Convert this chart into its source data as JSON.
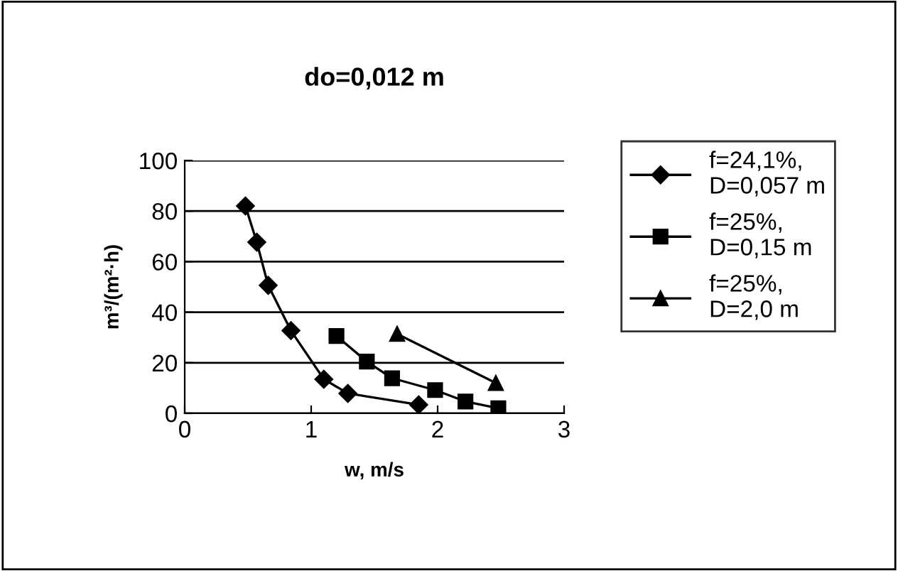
{
  "chart_data": {
    "type": "line",
    "title": "do=0,012 m",
    "xlabel": "w, m/s",
    "ylabel": "m³/(m²·h)",
    "xlim": [
      0,
      3
    ],
    "xticks": [
      0,
      1,
      2,
      3
    ],
    "ylim": [
      0,
      100
    ],
    "yticks": [
      0,
      20,
      40,
      60,
      80,
      100
    ],
    "grid": "y",
    "legend": "right",
    "line_style": "solid",
    "series": [
      {
        "name": "f=24,1%,\nD=0,057 m",
        "color": "#000000",
        "marker": "diamond",
        "x": [
          0.48,
          0.57,
          0.66,
          0.84,
          1.1,
          1.29,
          1.85
        ],
        "values": [
          82,
          67.7,
          50.6,
          32.7,
          13.5,
          7.9,
          3.4
        ]
      },
      {
        "name": "f=25%,\nD=0,15 m",
        "color": "#000000",
        "marker": "square",
        "x": [
          1.2,
          1.44,
          1.64,
          1.98,
          2.22,
          2.48
        ],
        "values": [
          30.6,
          20.5,
          13.9,
          9.2,
          4.7,
          2
        ]
      },
      {
        "name": "f=25%,\nD=2,0 m",
        "color": "#000000",
        "marker": "triangle",
        "x": [
          1.68,
          2.46
        ],
        "values": [
          31.4,
          12
        ]
      }
    ]
  }
}
